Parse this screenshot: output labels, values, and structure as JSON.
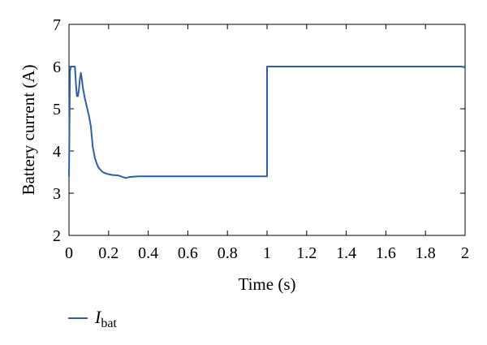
{
  "chart_data": {
    "type": "line",
    "xlabel": "Time (s)",
    "ylabel": "Battery current (A)",
    "xlim": [
      0,
      2
    ],
    "ylim": [
      2,
      7
    ],
    "xticks": [
      {
        "value": 0,
        "label": "0"
      },
      {
        "value": 0.2,
        "label": "0.2"
      },
      {
        "value": 0.4,
        "label": "0.4"
      },
      {
        "value": 0.6,
        "label": "0.6"
      },
      {
        "value": 0.8,
        "label": "0.8"
      },
      {
        "value": 1,
        "label": "1"
      },
      {
        "value": 1.2,
        "label": "1.2"
      },
      {
        "value": 1.4,
        "label": "1.4"
      },
      {
        "value": 1.6,
        "label": "1.6"
      },
      {
        "value": 1.8,
        "label": "1.8"
      },
      {
        "value": 2,
        "label": "2"
      }
    ],
    "yticks": [
      {
        "value": 2,
        "label": "2"
      },
      {
        "value": 3,
        "label": "3"
      },
      {
        "value": 4,
        "label": "4"
      },
      {
        "value": 5,
        "label": "5"
      },
      {
        "value": 6,
        "label": "6"
      },
      {
        "value": 7,
        "label": "7"
      }
    ],
    "grid": false,
    "legend_position": "bottom-left",
    "series": [
      {
        "name_main": "I",
        "name_sub": "bat",
        "color": "#2b5fae",
        "x": [
          0,
          0.005,
          0.01,
          0.02,
          0.03,
          0.035,
          0.04,
          0.045,
          0.05,
          0.055,
          0.06,
          0.065,
          0.07,
          0.08,
          0.09,
          0.1,
          0.11,
          0.12,
          0.13,
          0.14,
          0.15,
          0.16,
          0.17,
          0.18,
          0.19,
          0.2,
          0.22,
          0.25,
          0.28,
          0.29,
          0.3,
          0.32,
          0.35,
          0.4,
          0.5,
          0.6,
          0.7,
          0.8,
          0.9,
          0.97,
          1.0,
          1.0,
          1.2,
          1.4,
          1.6,
          1.8,
          1.98,
          2.0
        ],
        "y": [
          3.4,
          5.9,
          6.0,
          6.0,
          6.0,
          5.6,
          5.3,
          5.3,
          5.45,
          5.7,
          5.85,
          5.7,
          5.5,
          5.25,
          5.05,
          4.85,
          4.6,
          4.1,
          3.85,
          3.7,
          3.6,
          3.55,
          3.5,
          3.48,
          3.46,
          3.45,
          3.43,
          3.42,
          3.37,
          3.36,
          3.38,
          3.39,
          3.4,
          3.4,
          3.4,
          3.4,
          3.4,
          3.4,
          3.4,
          3.4,
          3.4,
          6.0,
          6.0,
          6.0,
          6.0,
          6.0,
          6.0,
          5.98
        ]
      }
    ]
  }
}
